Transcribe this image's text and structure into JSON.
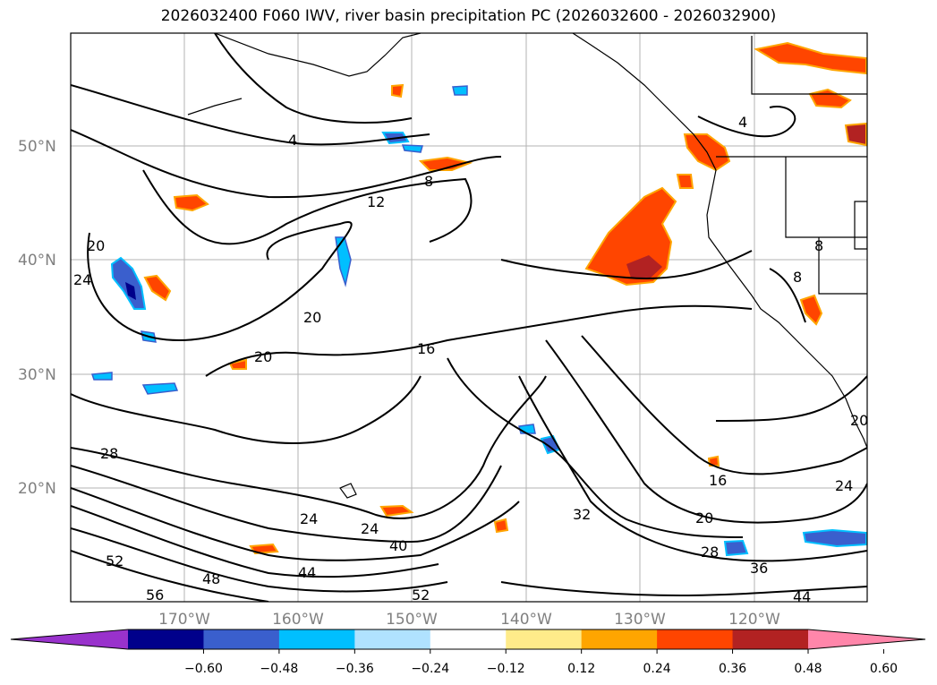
{
  "title": "2026032400 F060 IWV, river basin precipitation PC (2026032600 - 2026032900)",
  "map": {
    "lat_labels": [
      "50°N",
      "40°N",
      "30°N",
      "20°N"
    ],
    "lon_labels": [
      "170°W",
      "160°W",
      "150°W",
      "140°W",
      "130°W",
      "120°W"
    ],
    "contour_labels": [
      "4",
      "8",
      "12",
      "16",
      "20",
      "20",
      "20",
      "24",
      "24",
      "28",
      "32",
      "40",
      "44",
      "48",
      "52",
      "52",
      "56",
      "16",
      "20",
      "28",
      "36",
      "44",
      "24",
      "20",
      "4",
      "8",
      "8",
      "24"
    ]
  },
  "colorbar": {
    "ticks": [
      "−0.60",
      "−0.48",
      "−0.36",
      "−0.24",
      "−0.12",
      "0.12",
      "0.24",
      "0.36",
      "0.48",
      "0.60"
    ],
    "colors": [
      "#9932cc",
      "#00008b",
      "#3a5fcd",
      "#00bfff",
      "#b0e2ff",
      "#ffffff",
      "#ffeb8a",
      "#ffa500",
      "#ff4500",
      "#b22222",
      "#ff86aa"
    ]
  }
}
